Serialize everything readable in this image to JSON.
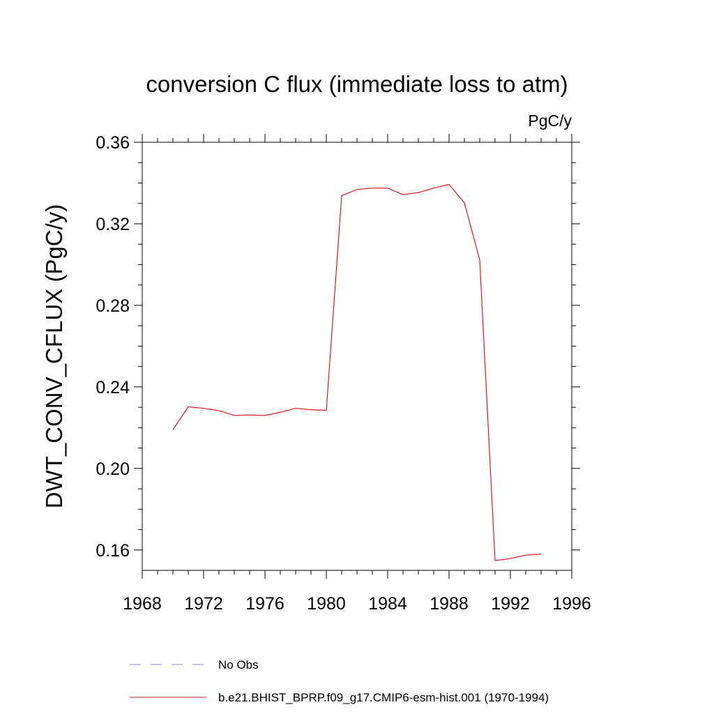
{
  "chart_data": {
    "type": "line",
    "title": "conversion C flux (immediate loss to atm)",
    "units_label": "PgC/y",
    "ylabel": "DWT_CONV_CFLUX  (PgC/y)",
    "xlabel": "",
    "xlim": [
      1968,
      1996
    ],
    "ylim": [
      0.15,
      0.36
    ],
    "x_ticks": [
      "1968",
      "1972",
      "1976",
      "1980",
      "1984",
      "1988",
      "1992",
      "1996"
    ],
    "y_ticks": [
      "0.16",
      "0.20",
      "0.24",
      "0.28",
      "0.32",
      "0.36"
    ],
    "grid": false,
    "legend_position": "bottom",
    "series": [
      {
        "name": "No Obs",
        "color": "#8a80c8",
        "dash": "dashed",
        "x": [],
        "y": []
      },
      {
        "name": "b.e21.BHIST_BPRP.f09_g17.CMIP6-esm-hist.001 (1970-1994)",
        "color": "#e8141c",
        "dash": "solid",
        "x": [
          1970,
          1971,
          1972,
          1973,
          1974,
          1975,
          1976,
          1977,
          1978,
          1979,
          1980,
          1981,
          1982,
          1983,
          1984,
          1985,
          1986,
          1987,
          1988,
          1989,
          1990,
          1991,
          1992,
          1993,
          1994
        ],
        "y": [
          0.219,
          0.2302,
          0.2295,
          0.2283,
          0.226,
          0.2262,
          0.226,
          0.2275,
          0.2295,
          0.2288,
          0.2285,
          0.3338,
          0.3368,
          0.3375,
          0.3375,
          0.3343,
          0.3353,
          0.3375,
          0.3393,
          0.3303,
          0.3023,
          0.1548,
          0.1558,
          0.1575,
          0.158
        ]
      }
    ]
  }
}
